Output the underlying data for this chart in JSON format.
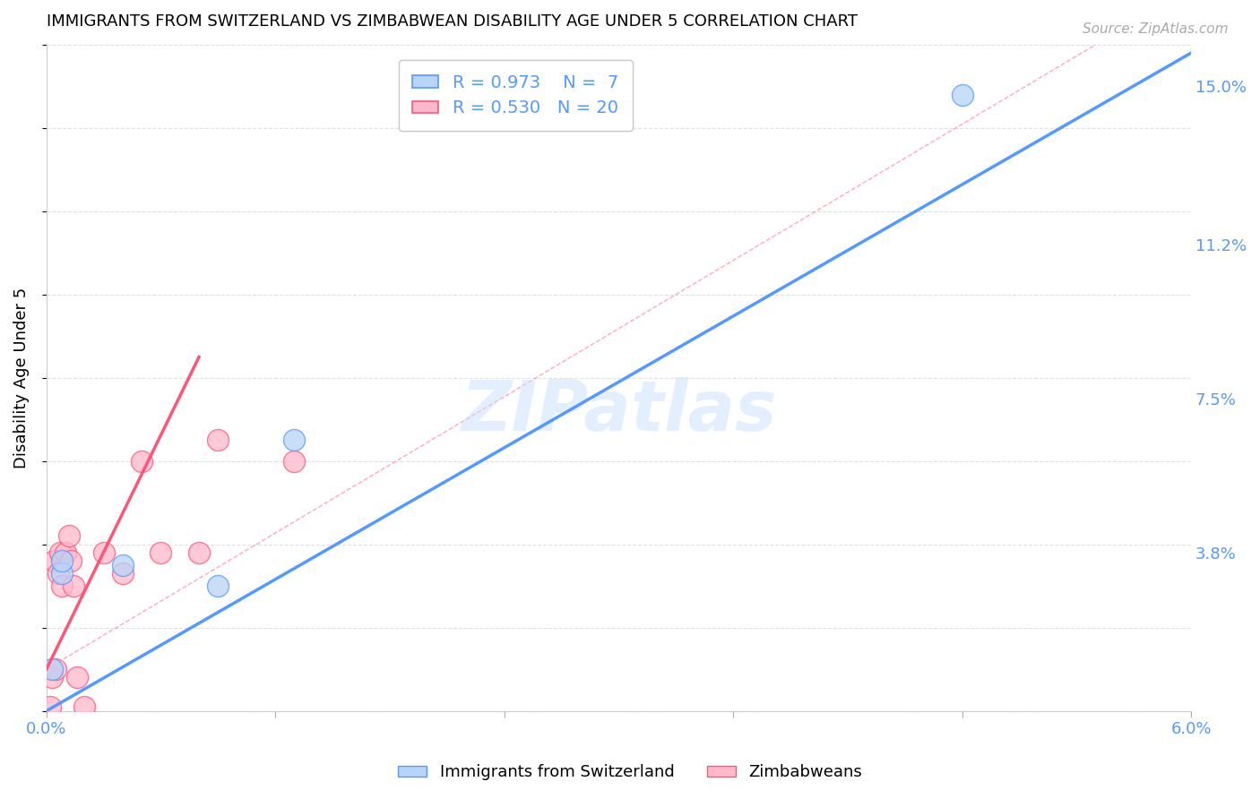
{
  "title": "IMMIGRANTS FROM SWITZERLAND VS ZIMBABWEAN DISABILITY AGE UNDER 5 CORRELATION CHART",
  "source": "Source: ZipAtlas.com",
  "xlabel": "",
  "ylabel": "Disability Age Under 5",
  "xlim": [
    0.0,
    0.06
  ],
  "ylim": [
    0.0,
    0.16
  ],
  "ytick_labels_right": [
    "3.8%",
    "7.5%",
    "11.2%",
    "15.0%"
  ],
  "ytick_vals_right": [
    0.038,
    0.075,
    0.112,
    0.15
  ],
  "blue_points_x": [
    0.0003,
    0.0008,
    0.0008,
    0.004,
    0.009,
    0.013,
    0.048
  ],
  "blue_points_y": [
    0.01,
    0.033,
    0.036,
    0.035,
    0.03,
    0.065,
    0.148
  ],
  "pink_points_x": [
    0.0002,
    0.0003,
    0.0004,
    0.0005,
    0.0006,
    0.0007,
    0.0008,
    0.001,
    0.0012,
    0.0013,
    0.0014,
    0.0016,
    0.002,
    0.003,
    0.004,
    0.005,
    0.006,
    0.008,
    0.009,
    0.013
  ],
  "pink_points_y": [
    0.001,
    0.008,
    0.036,
    0.01,
    0.033,
    0.038,
    0.03,
    0.038,
    0.042,
    0.036,
    0.03,
    0.008,
    0.001,
    0.038,
    0.033,
    0.06,
    0.038,
    0.038,
    0.065,
    0.06
  ],
  "blue_color": "#b8d4f8",
  "blue_line_color": "#5599ff",
  "pink_color": "#ffb8cc",
  "pink_line_color": "#ff5577",
  "blue_line_x0": 0.0,
  "blue_line_y0": 0.0,
  "blue_line_x1": 0.06,
  "blue_line_y1": 0.158,
  "pink_line_x0": 0.0,
  "pink_line_y0": 0.01,
  "pink_line_x1": 0.008,
  "pink_line_y1": 0.085,
  "dash_line_x0": 0.0,
  "dash_line_y0": 0.01,
  "dash_line_x1": 0.055,
  "dash_line_y1": 0.16,
  "legend_r_blue": "0.973",
  "legend_n_blue": "7",
  "legend_r_pink": "0.530",
  "legend_n_pink": "20",
  "legend_label_blue": "Immigrants from Switzerland",
  "legend_label_pink": "Zimbabweans",
  "watermark": "ZIPatlas",
  "background_color": "#ffffff",
  "grid_color": "#e0e0e0"
}
